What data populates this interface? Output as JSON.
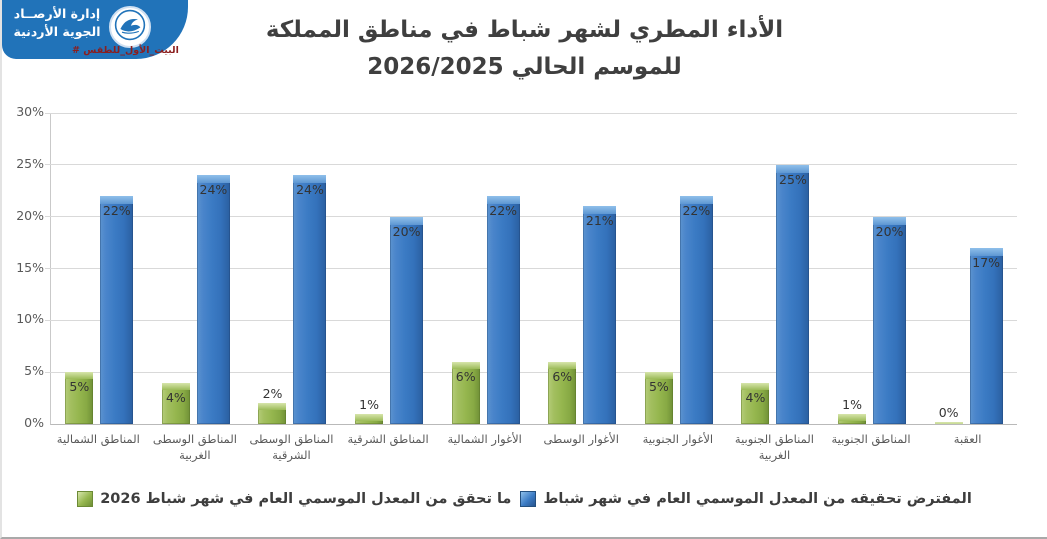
{
  "logo": {
    "org_line1": "إدارة الأرصــاد",
    "org_line2": "الجوية الأردنية",
    "hashtag": "# البيت_الأول_للطقس",
    "banner_color": "#2173b9",
    "hashtag_color": "#8b1e1e",
    "emblem_icon": "bird-icon"
  },
  "chart_data": {
    "type": "bar",
    "title_line1": "الأداء المطري لشهر شباط في مناطق المملكة",
    "title_line2": "للموسم الحالي 2026/2025",
    "categories": [
      "المناطق الشمالية",
      "المناطق الوسطى الغربية",
      "المناطق الوسطى الشرقية",
      "المناطق الشرقية",
      "الأغوار الشمالية",
      "الأغوار الوسطى",
      "الأغوار الجنوبية",
      "المناطق الجنوبية الغربية",
      "المناطق الجنوبية",
      "العقبة"
    ],
    "series": [
      {
        "name": "المفترض تحقيقه من المعدل الموسمي العام في شهر شباط",
        "color": "#3b7bc4",
        "values": [
          22,
          24,
          24,
          20,
          22,
          21,
          22,
          25,
          20,
          17
        ]
      },
      {
        "name": "ما تحقق من المعدل الموسمي العام في شهر شباط 2026",
        "color": "#9bbb59",
        "values": [
          5,
          4,
          2,
          1,
          6,
          6,
          5,
          4,
          1,
          0
        ]
      }
    ],
    "value_suffix": "%",
    "ylim": [
      0,
      30
    ],
    "ytick_labels": [
      "0%",
      "5%",
      "10%",
      "15%",
      "20%",
      "25%",
      "30%"
    ],
    "grid": true,
    "legend_position": "bottom"
  }
}
